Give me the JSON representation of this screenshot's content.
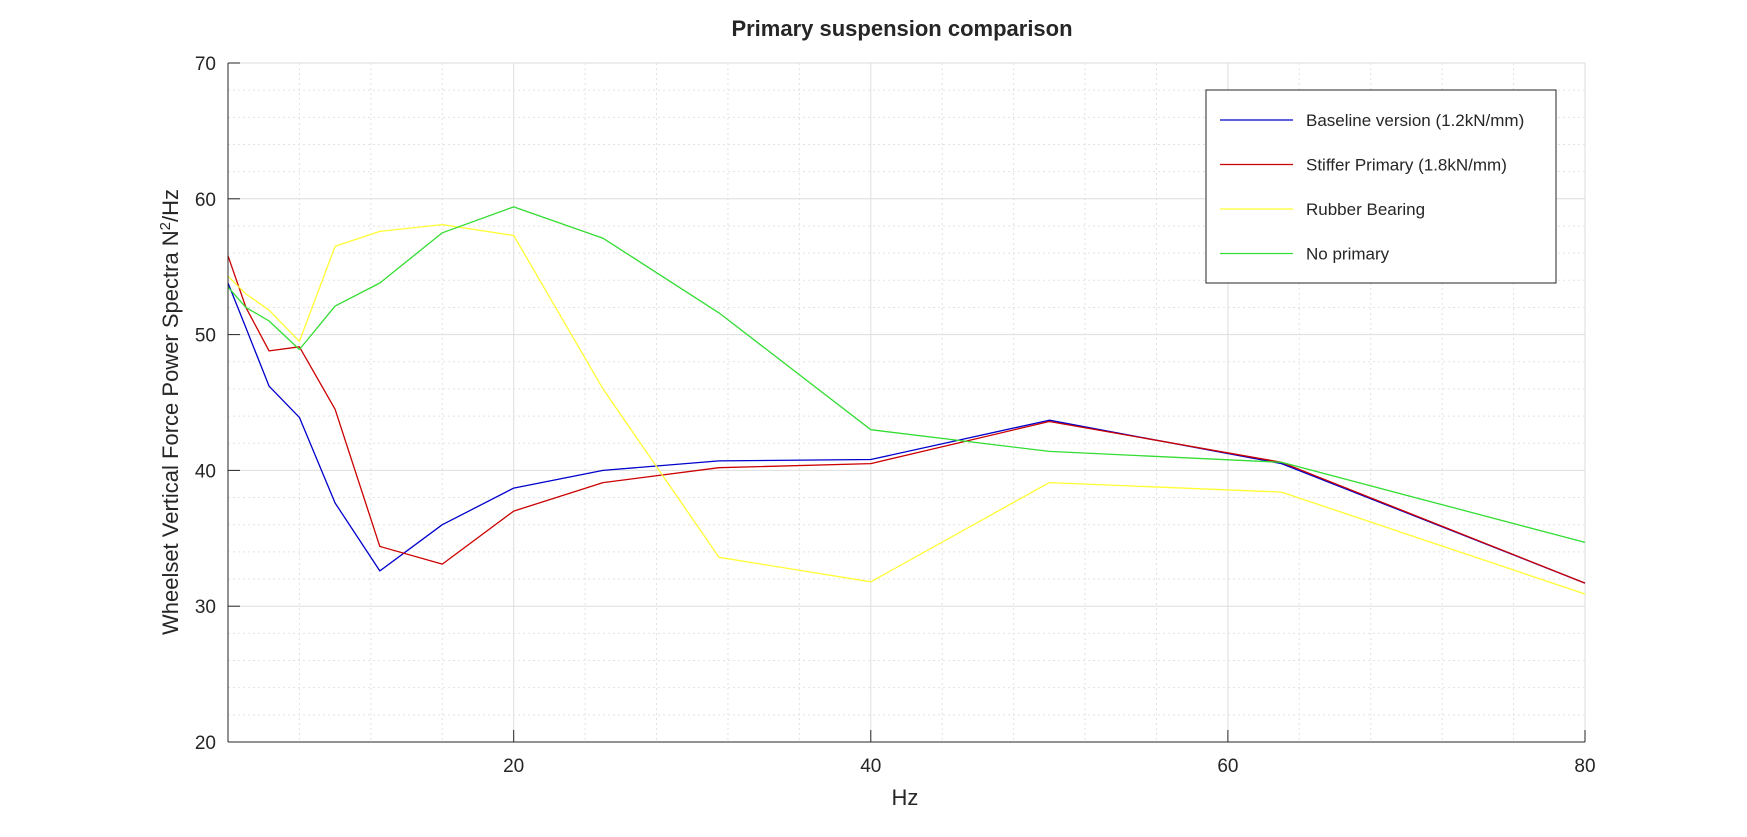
{
  "chart_data": {
    "type": "line",
    "title": "Primary suspension comparison",
    "xlabel": "Hz",
    "ylabel_main": "Wheelset Vertical Force Power Spectra N",
    "ylabel_sup": "2",
    "ylabel_tail": "/Hz",
    "xlim": [
      4,
      80
    ],
    "ylim": [
      20,
      70
    ],
    "xticks": [
      20,
      40,
      60,
      80
    ],
    "yticks": [
      20,
      30,
      40,
      50,
      60,
      70
    ],
    "grid": true,
    "minor_grid": true,
    "legend_position": "top-right",
    "x": [
      4,
      5,
      6.3,
      8,
      10,
      12.5,
      16,
      20,
      25,
      31.5,
      40,
      50,
      63,
      80
    ],
    "series": [
      {
        "name": "Baseline version (1.2kN/mm)",
        "color": "#0000cc",
        "values": [
          53.8,
          50.5,
          46.2,
          43.9,
          37.6,
          32.6,
          36.0,
          38.7,
          40.0,
          40.7,
          40.8,
          43.7,
          40.5,
          31.7
        ]
      },
      {
        "name": "Stiffer Primary (1.8kN/mm)",
        "color": "#cc0000",
        "values": [
          55.8,
          52.0,
          48.8,
          49.1,
          44.5,
          34.4,
          33.1,
          37.0,
          39.1,
          40.2,
          40.5,
          43.6,
          40.6,
          31.7
        ]
      },
      {
        "name": "Rubber Bearing",
        "color": "#ffff33",
        "values": [
          54.3,
          53.0,
          51.8,
          49.5,
          56.5,
          57.6,
          58.1,
          57.3,
          46.0,
          33.6,
          31.8,
          39.1,
          38.4,
          30.9
        ]
      },
      {
        "name": "No primary",
        "color": "#33dd33",
        "values": [
          53.5,
          52.0,
          51.0,
          48.9,
          52.1,
          53.8,
          57.5,
          59.4,
          57.1,
          51.6,
          43.0,
          41.4,
          40.6,
          34.7
        ]
      }
    ]
  }
}
